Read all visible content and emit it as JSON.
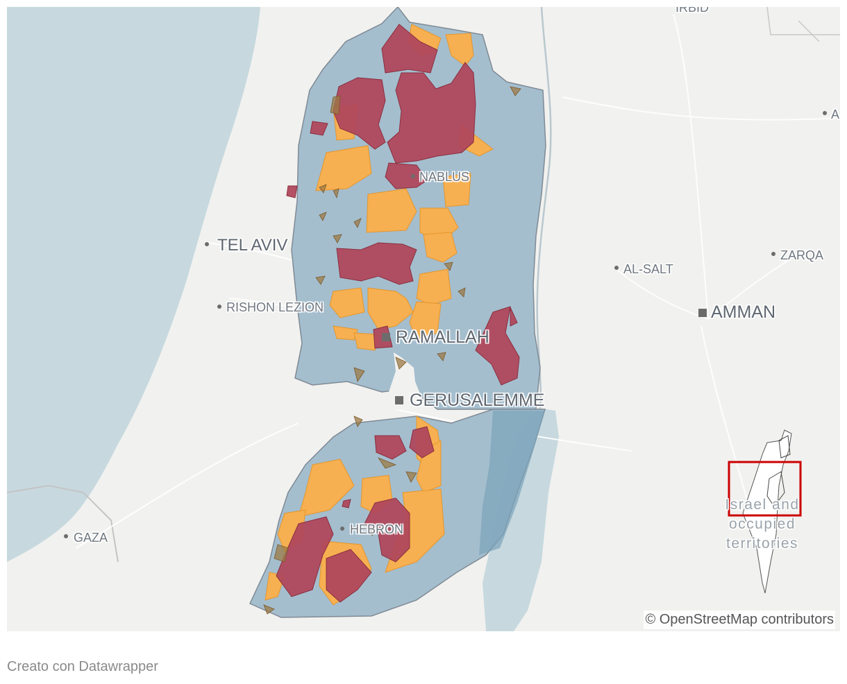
{
  "map": {
    "cities": [
      {
        "name": "TEL AVIV",
        "kind": "dot"
      },
      {
        "name": "RISHON LEZION",
        "kind": "dot"
      },
      {
        "name": "GAZA",
        "kind": "dot"
      },
      {
        "name": "NABLUS",
        "kind": "dot"
      },
      {
        "name": "RAMALLAH",
        "kind": "square"
      },
      {
        "name": "GERUSALEMME",
        "kind": "square"
      },
      {
        "name": "HEBRON",
        "kind": "dot"
      },
      {
        "name": "AL-SALT",
        "kind": "dot"
      },
      {
        "name": "AMMAN",
        "kind": "square"
      },
      {
        "name": "ZARQA",
        "kind": "dot"
      },
      {
        "name": "IRBID",
        "kind": "dot"
      },
      {
        "name": "A",
        "kind": "dot"
      }
    ],
    "inset_label": "Israel and occupied territories",
    "attribution": "© OpenStreetMap contributors",
    "colors": {
      "sea": "#c7d9df",
      "land": "#f1f1ef",
      "west_bank_area": "#9fbacb",
      "area_orange": "#f6b051",
      "area_red": "#b0485c",
      "area_olive": "#9c7a45",
      "inset_frame": "#cc0000"
    }
  },
  "footer": {
    "credit": "Creato con Datawrapper"
  }
}
